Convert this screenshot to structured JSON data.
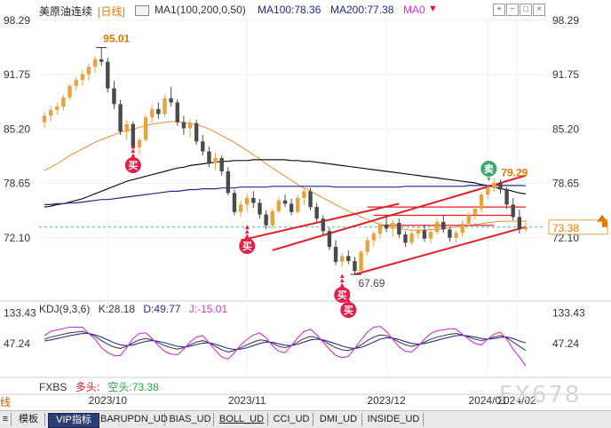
{
  "header": {
    "symbol": "美原油连续",
    "period": "[日线]",
    "ma1_label": "MA1(100,200,0,50)",
    "ma100": "MA100:78.36",
    "ma200": "MA200:77.38",
    "ma0": "MA0",
    "controls": [
      "▼",
      "+",
      "−",
      "□",
      "×"
    ]
  },
  "kdj": {
    "label": "KDJ(9,3,6)",
    "k": "K:28.18",
    "d": "D:49.77",
    "j": "J:-15.01"
  },
  "fxbs": {
    "label": "FXBS",
    "long": "多头:",
    "short": "空头:73.38"
  },
  "side_label": "线",
  "watermark": "FX678",
  "tabs": [
    {
      "label": "≡",
      "active": false
    },
    {
      "label": "模板",
      "active": false
    },
    {
      "label": "VIP指标",
      "active": true
    },
    {
      "label": "BARUPDN_UD",
      "active": false
    },
    {
      "label": "BIAS_UD",
      "active": false
    },
    {
      "label": "BOLL_UD",
      "active": false,
      "underline": true
    },
    {
      "label": "CCI_UD",
      "active": false
    },
    {
      "label": "DMI_UD",
      "active": false
    },
    {
      "label": "INSIDE_UD",
      "active": false
    }
  ],
  "colors": {
    "up": "#e8a33d",
    "down": "#4a4a4a",
    "ma100": "#1f2a8a",
    "ma200": "#111111",
    "ma_orange": "#e3902f",
    "trend": "#e31e24",
    "buy": "#e31e49",
    "sell": "#3aa86b",
    "k": "#444444",
    "d": "#2a2a99",
    "j": "#cc33cc",
    "last_price_box": "#e8a33d"
  },
  "chart_data": [
    {
      "type": "candlestick",
      "title": "美原油连续 [日线]",
      "y_ticks": [
        "98.29",
        "91.75",
        "85.20",
        "78.65",
        "72.10"
      ],
      "x_ticks": [
        "2023/10",
        "2023/11",
        "2023/12",
        "2024/01",
        "2024/02"
      ],
      "ylim": [
        64.8,
        98.6
      ],
      "last_price": "73.38",
      "last_price_value": 73.38,
      "annotations": {
        "high": {
          "label": "95.01",
          "value": 95.01
        },
        "low": {
          "label": "67.69",
          "value": 67.69
        },
        "recent_high": {
          "label": "79.29",
          "value": 79.29
        },
        "buy_labels": [
          "买",
          "买",
          "买",
          "买"
        ],
        "sell_labels": [
          "卖"
        ]
      },
      "series": [
        {
          "name": "MA100",
          "value_label": "78.36"
        },
        {
          "name": "MA200",
          "value_label": "77.38"
        }
      ],
      "candles": [
        [
          86.0,
          87.2,
          85.3,
          86.8
        ],
        [
          86.8,
          88.0,
          86.1,
          87.5
        ],
        [
          87.5,
          88.4,
          86.9,
          87.9
        ],
        [
          87.9,
          89.3,
          87.4,
          89.0
        ],
        [
          89.0,
          90.6,
          88.7,
          90.4
        ],
        [
          90.4,
          91.5,
          89.9,
          91.1
        ],
        [
          91.1,
          92.3,
          90.4,
          91.8
        ],
        [
          91.8,
          93.1,
          91.0,
          92.7
        ],
        [
          92.7,
          94.0,
          91.9,
          93.6
        ],
        [
          93.6,
          95.01,
          92.8,
          93.3
        ],
        [
          93.3,
          93.8,
          89.6,
          90.1
        ],
        [
          90.1,
          91.0,
          87.6,
          88.2
        ],
        [
          88.2,
          88.7,
          84.5,
          84.9
        ],
        [
          84.9,
          86.3,
          83.9,
          85.8
        ],
        [
          85.8,
          86.1,
          82.6,
          83.0
        ],
        [
          83.0,
          84.2,
          82.1,
          83.9
        ],
        [
          83.9,
          86.9,
          83.6,
          86.6
        ],
        [
          86.6,
          88.2,
          86.0,
          87.6
        ],
        [
          87.6,
          88.4,
          86.4,
          87.0
        ],
        [
          87.0,
          89.3,
          86.6,
          88.9
        ],
        [
          88.9,
          90.3,
          87.9,
          88.4
        ],
        [
          88.4,
          88.8,
          85.6,
          86.0
        ],
        [
          86.0,
          86.8,
          84.5,
          85.3
        ],
        [
          85.3,
          86.4,
          84.2,
          85.9
        ],
        [
          85.9,
          86.3,
          83.3,
          83.7
        ],
        [
          83.7,
          84.5,
          82.0,
          82.5
        ],
        [
          82.5,
          83.1,
          80.6,
          81.1
        ],
        [
          81.1,
          82.4,
          80.3,
          81.7
        ],
        [
          81.7,
          82.0,
          79.6,
          80.1
        ],
        [
          80.1,
          80.6,
          77.2,
          77.5
        ],
        [
          77.5,
          77.9,
          74.8,
          75.2
        ],
        [
          75.2,
          76.6,
          74.6,
          76.1
        ],
        [
          76.1,
          77.4,
          75.3,
          76.9
        ],
        [
          76.9,
          77.7,
          75.7,
          76.3
        ],
        [
          76.3,
          76.8,
          74.4,
          74.9
        ],
        [
          74.9,
          75.4,
          73.1,
          73.6
        ],
        [
          73.6,
          75.6,
          73.2,
          75.3
        ],
        [
          75.3,
          77.0,
          75.0,
          76.6
        ],
        [
          76.6,
          77.3,
          75.8,
          76.2
        ],
        [
          76.2,
          76.8,
          74.8,
          75.2
        ],
        [
          75.2,
          77.3,
          75.0,
          76.9
        ],
        [
          76.9,
          78.0,
          76.1,
          77.7
        ],
        [
          77.7,
          78.1,
          75.4,
          75.8
        ],
        [
          75.8,
          76.3,
          74.0,
          74.4
        ],
        [
          74.4,
          74.8,
          72.5,
          72.9
        ],
        [
          72.9,
          73.3,
          70.6,
          71.0
        ],
        [
          71.0,
          71.8,
          68.8,
          69.2
        ],
        [
          69.2,
          70.3,
          68.6,
          69.9
        ],
        [
          69.9,
          70.6,
          68.9,
          69.3
        ],
        [
          69.3,
          69.8,
          67.69,
          68.1
        ],
        [
          68.1,
          70.6,
          67.9,
          70.4
        ],
        [
          70.4,
          72.2,
          70.0,
          71.8
        ],
        [
          71.8,
          72.9,
          71.1,
          72.6
        ],
        [
          72.6,
          74.0,
          72.0,
          73.7
        ],
        [
          73.7,
          74.6,
          72.8,
          73.2
        ],
        [
          73.2,
          74.3,
          72.2,
          73.9
        ],
        [
          73.9,
          74.4,
          72.1,
          72.5
        ],
        [
          72.5,
          72.9,
          71.0,
          71.5
        ],
        [
          71.5,
          73.0,
          71.2,
          72.6
        ],
        [
          72.6,
          73.6,
          72.0,
          73.0
        ],
        [
          73.0,
          73.7,
          71.6,
          72.0
        ],
        [
          72.0,
          73.2,
          71.4,
          72.8
        ],
        [
          72.8,
          74.4,
          72.5,
          74.0
        ],
        [
          74.0,
          74.8,
          72.7,
          73.1
        ],
        [
          73.1,
          73.4,
          71.6,
          72.1
        ],
        [
          72.1,
          73.0,
          71.5,
          72.7
        ],
        [
          72.7,
          74.2,
          72.2,
          73.8
        ],
        [
          73.8,
          75.2,
          73.4,
          74.9
        ],
        [
          74.9,
          76.0,
          74.3,
          75.6
        ],
        [
          75.6,
          77.6,
          75.2,
          77.3
        ],
        [
          77.3,
          78.5,
          76.7,
          78.1
        ],
        [
          78.1,
          79.29,
          77.6,
          78.7
        ],
        [
          78.7,
          79.1,
          77.4,
          77.9
        ],
        [
          77.9,
          78.2,
          75.6,
          76.1
        ],
        [
          76.1,
          76.9,
          74.2,
          74.6
        ],
        [
          74.6,
          75.5,
          72.6,
          73.1
        ],
        [
          73.1,
          74.3,
          72.8,
          73.38
        ]
      ],
      "ma100_values": [
        76.1,
        76.1,
        76.2,
        76.2,
        76.3,
        76.3,
        76.4,
        76.5,
        76.6,
        76.7,
        76.7,
        76.8,
        76.9,
        77.0,
        77.1,
        77.2,
        77.3,
        77.4,
        77.5,
        77.6,
        77.7,
        77.7,
        77.8,
        77.9,
        77.9,
        78.0,
        78.0,
        78.0,
        78.1,
        78.1,
        78.1,
        78.2,
        78.2,
        78.2,
        78.2,
        78.2,
        78.3,
        78.3,
        78.3,
        78.3,
        78.3,
        78.3,
        78.3,
        78.3,
        78.3,
        78.3,
        78.2,
        78.2,
        78.2,
        78.2,
        78.2,
        78.2,
        78.2,
        78.2,
        78.2,
        78.2,
        78.2,
        78.3,
        78.3,
        78.3,
        78.3,
        78.3,
        78.3,
        78.3,
        78.3,
        78.3,
        78.3,
        78.4,
        78.4,
        78.4,
        78.4,
        78.4,
        78.4,
        78.4,
        78.4,
        78.4,
        78.36
      ],
      "ma200_values": [
        75.8,
        75.9,
        76.1,
        76.2,
        76.4,
        76.6,
        76.8,
        77.1,
        77.4,
        77.7,
        78.0,
        78.3,
        78.6,
        78.9,
        79.1,
        79.3,
        79.5,
        79.7,
        79.9,
        80.1,
        80.3,
        80.5,
        80.6,
        80.8,
        80.9,
        81.0,
        81.1,
        81.2,
        81.3,
        81.3,
        81.4,
        81.4,
        81.4,
        81.5,
        81.5,
        81.5,
        81.5,
        81.5,
        81.5,
        81.4,
        81.4,
        81.3,
        81.3,
        81.2,
        81.1,
        81.0,
        80.9,
        80.8,
        80.7,
        80.6,
        80.5,
        80.4,
        80.3,
        80.2,
        80.1,
        80.0,
        79.9,
        79.8,
        79.7,
        79.6,
        79.5,
        79.4,
        79.3,
        79.2,
        79.1,
        79.0,
        78.9,
        78.8,
        78.7,
        78.5,
        78.4,
        78.2,
        78.0,
        77.9,
        77.7,
        77.5,
        77.38
      ],
      "ma_orange_values": [
        80.2,
        80.6,
        81.0,
        81.5,
        82.0,
        82.4,
        82.8,
        83.2,
        83.6,
        83.9,
        84.2,
        84.5,
        84.8,
        85.0,
        85.2,
        85.4,
        85.6,
        85.8,
        85.9,
        86.0,
        86.1,
        86.1,
        86.0,
        85.9,
        85.7,
        85.5,
        85.2,
        84.8,
        84.4,
        84.0,
        83.6,
        83.1,
        82.6,
        82.1,
        81.6,
        81.0,
        80.5,
        80.0,
        79.5,
        79.0,
        78.5,
        78.1,
        77.7,
        77.3,
        76.9,
        76.5,
        76.1,
        75.7,
        75.3,
        75.0,
        74.6,
        74.3,
        74.0,
        73.7,
        73.5,
        73.3,
        73.2,
        73.1,
        73.0,
        73.0,
        73.0,
        73.1,
        73.1,
        73.2,
        73.3,
        73.4,
        73.5,
        73.6,
        73.7,
        73.8,
        73.9,
        74.0,
        74.1,
        74.1,
        74.1,
        74.1,
        74.1
      ]
    },
    {
      "type": "line",
      "title": "KDJ(9,3,6)",
      "y_ticks": [
        "133.43",
        "47.24"
      ],
      "ylim": [
        -40,
        150
      ],
      "series": [
        {
          "name": "K",
          "values": [
            60,
            66,
            70,
            74,
            78,
            80,
            82,
            76,
            68,
            56,
            46,
            38,
            34,
            40,
            50,
            58,
            62,
            58,
            50,
            42,
            36,
            32,
            36,
            44,
            52,
            56,
            50,
            40,
            30,
            24,
            28,
            36,
            44,
            52,
            58,
            56,
            48,
            40,
            36,
            42,
            52,
            62,
            68,
            64,
            56,
            46,
            36,
            30,
            28,
            34,
            44,
            56,
            66,
            72,
            70,
            62,
            52,
            44,
            40,
            44,
            52,
            60,
            66,
            70,
            74,
            76,
            72,
            66,
            60,
            56,
            60,
            66,
            70,
            64,
            52,
            40,
            28.18
          ]
        },
        {
          "name": "D",
          "values": [
            55,
            58,
            62,
            66,
            70,
            73,
            76,
            76,
            72,
            66,
            58,
            50,
            44,
            42,
            44,
            49,
            54,
            56,
            54,
            50,
            45,
            40,
            38,
            40,
            45,
            49,
            50,
            46,
            40,
            34,
            31,
            32,
            36,
            42,
            48,
            52,
            51,
            47,
            43,
            42,
            46,
            52,
            58,
            60,
            58,
            53,
            47,
            41,
            36,
            34,
            37,
            44,
            52,
            60,
            64,
            63,
            59,
            53,
            48,
            46,
            48,
            52,
            57,
            62,
            66,
            70,
            71,
            69,
            66,
            62,
            60,
            62,
            65,
            66,
            62,
            55,
            49.77
          ]
        },
        {
          "name": "J",
          "values": [
            70,
            82,
            86,
            90,
            94,
            94,
            94,
            76,
            60,
            36,
            22,
            14,
            14,
            36,
            62,
            76,
            78,
            62,
            42,
            26,
            18,
            16,
            32,
            52,
            66,
            70,
            50,
            28,
            10,
            4,
            22,
            44,
            60,
            72,
            78,
            64,
            42,
            26,
            22,
            42,
            64,
            82,
            88,
            72,
            52,
            32,
            14,
            8,
            12,
            34,
            58,
            80,
            94,
            96,
            82,
            60,
            38,
            26,
            24,
            40,
            60,
            76,
            84,
            86,
            90,
            88,
            74,
            60,
            48,
            44,
            60,
            74,
            80,
            60,
            32,
            10,
            -15.01
          ]
        }
      ]
    }
  ]
}
